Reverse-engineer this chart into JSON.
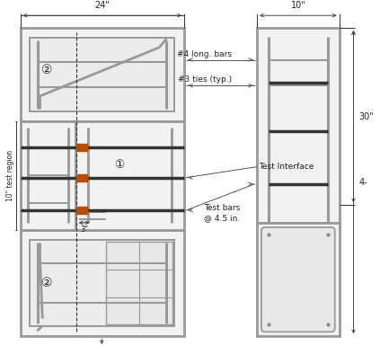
{
  "figure_width": 4.23,
  "figure_height": 3.94,
  "dpi": 100,
  "bg_color": "#ffffff",
  "gray": "#999999",
  "dark": "#333333",
  "orange": "#b84c00",
  "text_color": "#222222",
  "labels": {
    "dim_24": "24\"",
    "dim_10": "10\"",
    "dim_30": "30\"",
    "dim_44": "4-",
    "dim_3": "3\"",
    "long_bars": "#4 long. bars",
    "ties": "#3 ties (typ.)",
    "test_interface": "Test Interface",
    "test_bars": "Test bars\n@ 4.5 in.",
    "label_1": "①",
    "label_2": "②",
    "test_region": "10\" test region"
  }
}
